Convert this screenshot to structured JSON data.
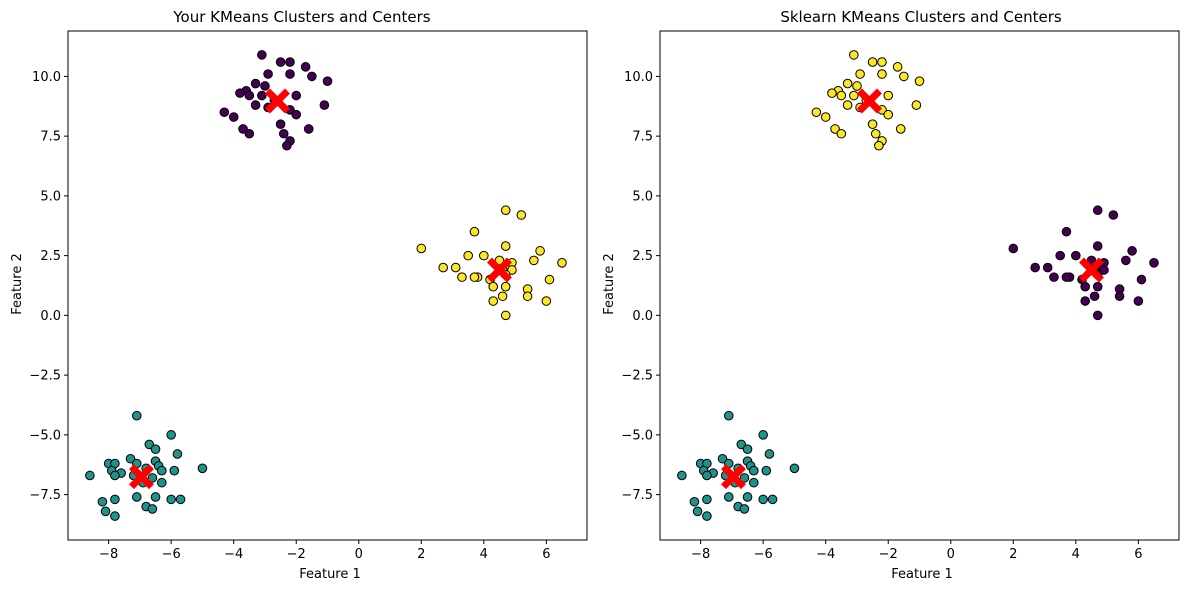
{
  "chart_data": [
    {
      "type": "scatter",
      "title": "Your KMeans Clusters and Centers",
      "xlabel": "Feature 1",
      "ylabel": "Feature 2",
      "xlim": [
        -9.3,
        7.3
      ],
      "ylim": [
        -9.4,
        11.9
      ],
      "xticks": [
        -8,
        -6,
        -4,
        -2,
        0,
        2,
        4,
        6
      ],
      "xtick_labels": [
        "−8",
        "−6",
        "−4",
        "−2",
        "0",
        "2",
        "4",
        "6"
      ],
      "yticks": [
        -7.5,
        -5.0,
        -2.5,
        0.0,
        2.5,
        5.0,
        7.5,
        10.0
      ],
      "ytick_labels": [
        "−7.5",
        "−5.0",
        "−2.5",
        "0.0",
        "2.5",
        "5.0",
        "7.5",
        "10.0"
      ],
      "grid": false,
      "cluster_colors": [
        "#440154",
        "#21918c",
        "#fde725"
      ],
      "point_edge_color": "#000000",
      "center_marker": "X",
      "center_color": "#ff0000",
      "series": [
        {
          "cluster": 0,
          "color": "#440154",
          "points": [
            [
              -3.1,
              10.9
            ],
            [
              -2.5,
              10.6
            ],
            [
              -2.2,
              10.6
            ],
            [
              -1.7,
              10.4
            ],
            [
              -2.9,
              10.1
            ],
            [
              -2.2,
              10.1
            ],
            [
              -1.5,
              10.0
            ],
            [
              -1.0,
              9.8
            ],
            [
              -3.3,
              9.7
            ],
            [
              -3.0,
              9.6
            ],
            [
              -3.6,
              9.4
            ],
            [
              -3.8,
              9.3
            ],
            [
              -3.5,
              9.2
            ],
            [
              -3.1,
              9.2
            ],
            [
              -2.0,
              9.2
            ],
            [
              -2.7,
              9.0
            ],
            [
              -3.3,
              8.8
            ],
            [
              -2.9,
              8.7
            ],
            [
              -2.2,
              8.6
            ],
            [
              -1.1,
              8.8
            ],
            [
              -4.3,
              8.5
            ],
            [
              -4.0,
              8.3
            ],
            [
              -2.0,
              8.4
            ],
            [
              -2.5,
              8.0
            ],
            [
              -1.6,
              7.8
            ],
            [
              -3.7,
              7.8
            ],
            [
              -3.5,
              7.6
            ],
            [
              -2.4,
              7.6
            ],
            [
              -2.2,
              7.3
            ],
            [
              -2.3,
              7.1
            ]
          ]
        },
        {
          "cluster": 1,
          "color": "#21918c",
          "points": [
            [
              -7.1,
              -4.2
            ],
            [
              -6.0,
              -5.0
            ],
            [
              -6.7,
              -5.4
            ],
            [
              -6.5,
              -5.6
            ],
            [
              -5.8,
              -5.8
            ],
            [
              -7.3,
              -6.0
            ],
            [
              -6.5,
              -6.1
            ],
            [
              -7.1,
              -6.2
            ],
            [
              -8.0,
              -6.2
            ],
            [
              -7.8,
              -6.2
            ],
            [
              -6.4,
              -6.3
            ],
            [
              -6.8,
              -6.4
            ],
            [
              -6.3,
              -6.5
            ],
            [
              -7.9,
              -6.5
            ],
            [
              -5.9,
              -6.5
            ],
            [
              -8.6,
              -6.7
            ],
            [
              -7.6,
              -6.6
            ],
            [
              -7.8,
              -6.7
            ],
            [
              -7.2,
              -6.7
            ],
            [
              -6.6,
              -6.8
            ],
            [
              -6.3,
              -7.0
            ],
            [
              -6.9,
              -7.0
            ],
            [
              -5.0,
              -6.4
            ],
            [
              -7.1,
              -7.6
            ],
            [
              -6.5,
              -7.6
            ],
            [
              -6.0,
              -7.7
            ],
            [
              -5.7,
              -7.7
            ],
            [
              -8.2,
              -7.8
            ],
            [
              -7.8,
              -7.7
            ],
            [
              -6.8,
              -8.0
            ],
            [
              -6.6,
              -8.1
            ],
            [
              -8.1,
              -8.2
            ],
            [
              -7.8,
              -8.4
            ]
          ]
        },
        {
          "cluster": 2,
          "color": "#fde725",
          "points": [
            [
              4.7,
              4.4
            ],
            [
              5.2,
              4.2
            ],
            [
              3.7,
              3.5
            ],
            [
              4.7,
              2.9
            ],
            [
              5.8,
              2.7
            ],
            [
              2.0,
              2.8
            ],
            [
              4.0,
              2.5
            ],
            [
              3.5,
              2.5
            ],
            [
              4.5,
              2.3
            ],
            [
              3.1,
              2.0
            ],
            [
              2.7,
              2.0
            ],
            [
              4.8,
              2.1
            ],
            [
              4.9,
              2.2
            ],
            [
              5.6,
              2.3
            ],
            [
              6.5,
              2.2
            ],
            [
              4.6,
              1.9
            ],
            [
              4.9,
              1.9
            ],
            [
              3.8,
              1.6
            ],
            [
              3.3,
              1.6
            ],
            [
              3.7,
              1.6
            ],
            [
              4.2,
              1.5
            ],
            [
              4.7,
              1.7
            ],
            [
              6.1,
              1.5
            ],
            [
              4.7,
              1.2
            ],
            [
              4.3,
              1.2
            ],
            [
              5.4,
              1.1
            ],
            [
              5.4,
              0.8
            ],
            [
              4.6,
              0.8
            ],
            [
              4.3,
              0.6
            ],
            [
              6.0,
              0.6
            ],
            [
              4.7,
              0.0
            ]
          ]
        }
      ],
      "centers": [
        [
          -2.6,
          8.97
        ],
        [
          -6.95,
          -6.75
        ],
        [
          4.5,
          1.9
        ]
      ]
    },
    {
      "type": "scatter",
      "title": "Sklearn KMeans Clusters and Centers",
      "xlabel": "Feature 1",
      "ylabel": "Feature 2",
      "xlim": [
        -9.3,
        7.3
      ],
      "ylim": [
        -9.4,
        11.9
      ],
      "xticks": [
        -8,
        -6,
        -4,
        -2,
        0,
        2,
        4,
        6
      ],
      "xtick_labels": [
        "−8",
        "−6",
        "−4",
        "−2",
        "0",
        "2",
        "4",
        "6"
      ],
      "yticks": [
        -7.5,
        -5.0,
        -2.5,
        0.0,
        2.5,
        5.0,
        7.5,
        10.0
      ],
      "ytick_labels": [
        "−7.5",
        "−5.0",
        "−2.5",
        "0.0",
        "2.5",
        "5.0",
        "7.5",
        "10.0"
      ],
      "grid": false,
      "cluster_colors": [
        "#fde725",
        "#21918c",
        "#440154"
      ],
      "point_edge_color": "#000000",
      "center_marker": "X",
      "center_color": "#ff0000",
      "series": [
        {
          "cluster": 0,
          "color": "#fde725",
          "points": [
            [
              -3.1,
              10.9
            ],
            [
              -2.5,
              10.6
            ],
            [
              -2.2,
              10.6
            ],
            [
              -1.7,
              10.4
            ],
            [
              -2.9,
              10.1
            ],
            [
              -2.2,
              10.1
            ],
            [
              -1.5,
              10.0
            ],
            [
              -1.0,
              9.8
            ],
            [
              -3.3,
              9.7
            ],
            [
              -3.0,
              9.6
            ],
            [
              -3.6,
              9.4
            ],
            [
              -3.8,
              9.3
            ],
            [
              -3.5,
              9.2
            ],
            [
              -3.1,
              9.2
            ],
            [
              -2.0,
              9.2
            ],
            [
              -2.7,
              9.0
            ],
            [
              -3.3,
              8.8
            ],
            [
              -2.9,
              8.7
            ],
            [
              -2.2,
              8.6
            ],
            [
              -1.1,
              8.8
            ],
            [
              -4.3,
              8.5
            ],
            [
              -4.0,
              8.3
            ],
            [
              -2.0,
              8.4
            ],
            [
              -2.5,
              8.0
            ],
            [
              -1.6,
              7.8
            ],
            [
              -3.7,
              7.8
            ],
            [
              -3.5,
              7.6
            ],
            [
              -2.4,
              7.6
            ],
            [
              -2.2,
              7.3
            ],
            [
              -2.3,
              7.1
            ]
          ]
        },
        {
          "cluster": 1,
          "color": "#21918c",
          "points": [
            [
              -7.1,
              -4.2
            ],
            [
              -6.0,
              -5.0
            ],
            [
              -6.7,
              -5.4
            ],
            [
              -6.5,
              -5.6
            ],
            [
              -5.8,
              -5.8
            ],
            [
              -7.3,
              -6.0
            ],
            [
              -6.5,
              -6.1
            ],
            [
              -7.1,
              -6.2
            ],
            [
              -8.0,
              -6.2
            ],
            [
              -7.8,
              -6.2
            ],
            [
              -6.4,
              -6.3
            ],
            [
              -6.8,
              -6.4
            ],
            [
              -6.3,
              -6.5
            ],
            [
              -7.9,
              -6.5
            ],
            [
              -5.9,
              -6.5
            ],
            [
              -8.6,
              -6.7
            ],
            [
              -7.6,
              -6.6
            ],
            [
              -7.8,
              -6.7
            ],
            [
              -7.2,
              -6.7
            ],
            [
              -6.6,
              -6.8
            ],
            [
              -6.3,
              -7.0
            ],
            [
              -6.9,
              -7.0
            ],
            [
              -5.0,
              -6.4
            ],
            [
              -7.1,
              -7.6
            ],
            [
              -6.5,
              -7.6
            ],
            [
              -6.0,
              -7.7
            ],
            [
              -5.7,
              -7.7
            ],
            [
              -8.2,
              -7.8
            ],
            [
              -7.8,
              -7.7
            ],
            [
              -6.8,
              -8.0
            ],
            [
              -6.6,
              -8.1
            ],
            [
              -8.1,
              -8.2
            ],
            [
              -7.8,
              -8.4
            ]
          ]
        },
        {
          "cluster": 2,
          "color": "#440154",
          "points": [
            [
              4.7,
              4.4
            ],
            [
              5.2,
              4.2
            ],
            [
              3.7,
              3.5
            ],
            [
              4.7,
              2.9
            ],
            [
              5.8,
              2.7
            ],
            [
              2.0,
              2.8
            ],
            [
              4.0,
              2.5
            ],
            [
              3.5,
              2.5
            ],
            [
              4.5,
              2.3
            ],
            [
              3.1,
              2.0
            ],
            [
              2.7,
              2.0
            ],
            [
              4.8,
              2.1
            ],
            [
              4.9,
              2.2
            ],
            [
              5.6,
              2.3
            ],
            [
              6.5,
              2.2
            ],
            [
              4.6,
              1.9
            ],
            [
              4.9,
              1.9
            ],
            [
              3.8,
              1.6
            ],
            [
              3.3,
              1.6
            ],
            [
              3.7,
              1.6
            ],
            [
              4.2,
              1.5
            ],
            [
              4.7,
              1.7
            ],
            [
              6.1,
              1.5
            ],
            [
              4.7,
              1.2
            ],
            [
              4.3,
              1.2
            ],
            [
              5.4,
              1.1
            ],
            [
              5.4,
              0.8
            ],
            [
              4.6,
              0.8
            ],
            [
              4.3,
              0.6
            ],
            [
              6.0,
              0.6
            ],
            [
              4.7,
              0.0
            ]
          ]
        }
      ],
      "centers": [
        [
          -2.6,
          8.97
        ],
        [
          -6.95,
          -6.75
        ],
        [
          4.5,
          1.9
        ]
      ]
    }
  ]
}
